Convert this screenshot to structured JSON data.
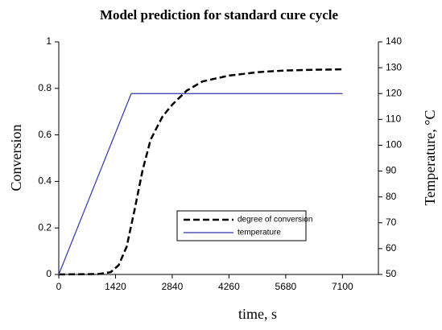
{
  "chart_data": {
    "type": "line",
    "title": "Model prediction for standard cure cycle",
    "x_label": "time, s",
    "y_label": "Conversion",
    "y2_label": "Temperature, °C",
    "xlim": [
      0,
      8000
    ],
    "xticks": [
      0,
      1420,
      2840,
      4260,
      5680,
      7100
    ],
    "ylim": [
      0,
      1
    ],
    "yticks": [
      0,
      0.2,
      0.4,
      0.6,
      0.8,
      1
    ],
    "y2lim": [
      50,
      140
    ],
    "y2ticks": [
      50,
      60,
      70,
      80,
      90,
      100,
      110,
      120,
      130,
      140
    ],
    "series": [
      {
        "name": "degree of conversion",
        "color": "#000000",
        "line_style": "dashed",
        "axis": "y",
        "x": [
          0,
          1000,
          1300,
          1500,
          1700,
          1900,
          2100,
          2300,
          2600,
          2840,
          3200,
          3600,
          4260,
          5000,
          5680,
          6400,
          7100
        ],
        "values": [
          0,
          0.002,
          0.01,
          0.04,
          0.12,
          0.28,
          0.45,
          0.58,
          0.68,
          0.73,
          0.79,
          0.83,
          0.855,
          0.87,
          0.877,
          0.88,
          0.882
        ]
      },
      {
        "name": "temperature",
        "color": "#3333aa",
        "line_style": "solid",
        "axis": "y2",
        "x": [
          0,
          1814,
          7100
        ],
        "values": [
          50,
          120,
          120
        ]
      }
    ]
  }
}
